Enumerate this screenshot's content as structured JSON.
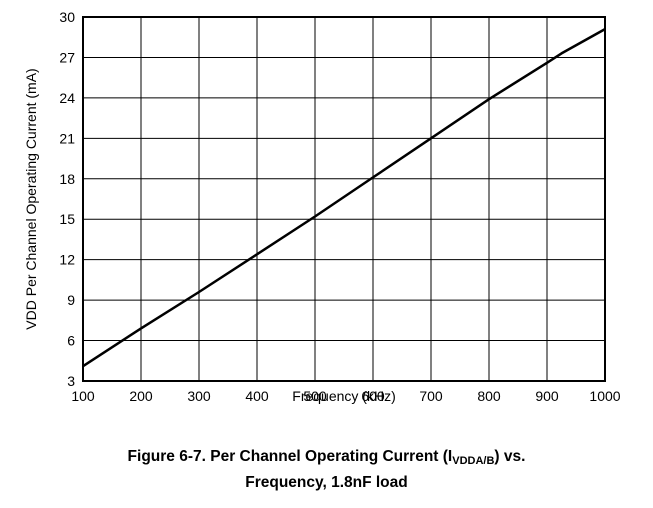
{
  "chart_data": {
    "type": "line",
    "xlabel": "Frequency (kHz)",
    "ylabel": "VDD Per Channel Operating Current (mA)",
    "xlim": [
      100,
      1000
    ],
    "ylim": [
      3,
      30
    ],
    "xticks": [
      100,
      200,
      300,
      400,
      500,
      600,
      700,
      800,
      900,
      1000
    ],
    "yticks": [
      3,
      6,
      9,
      12,
      15,
      18,
      21,
      24,
      27,
      30
    ],
    "grid": true,
    "legend": "none",
    "color": "#000000",
    "series": [
      {
        "x": [
          100,
          200,
          300,
          400,
          500,
          600,
          700,
          800,
          900,
          925,
          1000
        ],
        "y": [
          4.1,
          6.9,
          9.6,
          12.4,
          15.2,
          18.1,
          21.0,
          23.9,
          26.6,
          27.3,
          29.1
        ]
      }
    ]
  },
  "caption": {
    "line1_before": "Figure 6-7. Per Channel Operating Current (I",
    "line1_sub": "VDDA/B",
    "line1_after": ") vs.",
    "line2": "Frequency, 1.8nF load"
  }
}
